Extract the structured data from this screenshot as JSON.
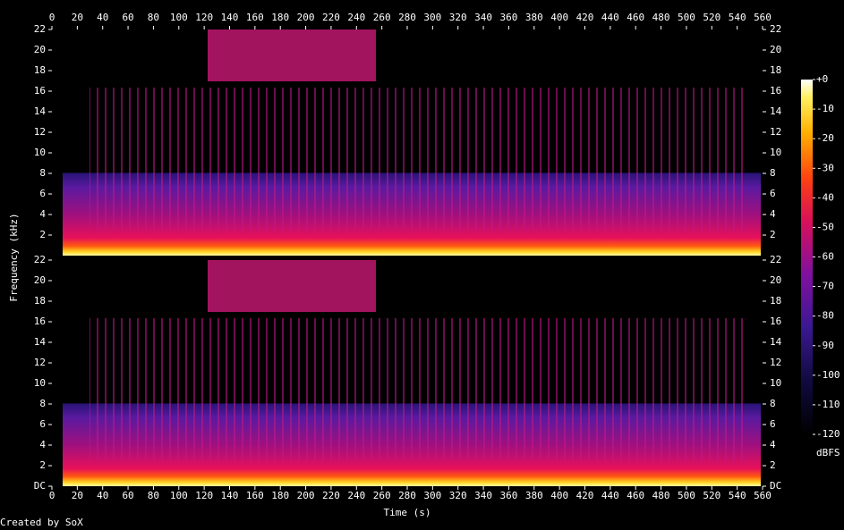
{
  "chart_data": {
    "type": "spectrogram",
    "x_label": "Time (s)",
    "y_label": "Frequency (kHz)",
    "xlim": [
      0,
      560
    ],
    "xticks": [
      0,
      20,
      40,
      60,
      80,
      100,
      120,
      140,
      160,
      180,
      200,
      220,
      240,
      260,
      280,
      300,
      320,
      340,
      360,
      380,
      400,
      420,
      440,
      460,
      480,
      500,
      520,
      540,
      560
    ],
    "channels": [
      {
        "ylim": [
          0,
          22
        ],
        "yticks": [
          2,
          4,
          6,
          8,
          10,
          12,
          14,
          16,
          18,
          20,
          22
        ]
      },
      {
        "ylim": [
          0,
          22
        ],
        "yticks": [
          {
            "value": 0,
            "label": "DC"
          },
          2,
          4,
          6,
          8,
          10,
          12,
          14,
          16,
          18,
          20,
          22
        ]
      }
    ],
    "colorbar": {
      "label": "dBFS",
      "lim": [
        -120,
        0
      ],
      "ticks": [
        {
          "value": 0,
          "label": "+0"
        },
        -10,
        -20,
        -30,
        -40,
        -50,
        -60,
        -70,
        -80,
        -90,
        -100,
        -110,
        -120
      ]
    },
    "credit": "Created by SoX"
  }
}
